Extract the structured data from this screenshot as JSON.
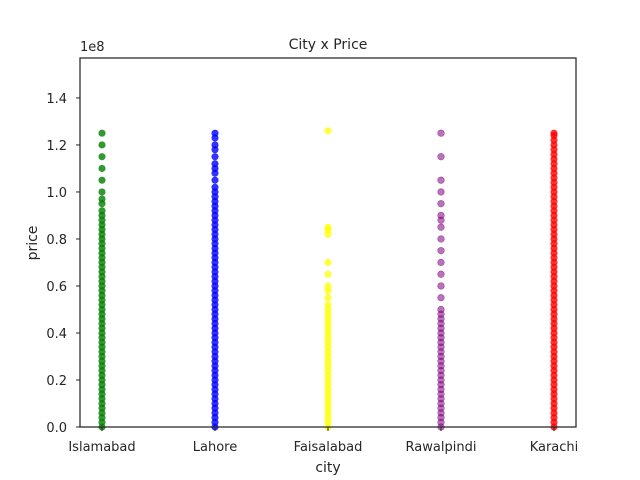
{
  "chart_data": {
    "type": "scatter",
    "title": "City x Price",
    "xlabel": "city",
    "ylabel": "price",
    "y_offset_label": "1e8",
    "ylim": [
      0,
      1.57
    ],
    "y_ticks": [
      0.0,
      0.2,
      0.4,
      0.6,
      0.8,
      1.0,
      1.2,
      1.4
    ],
    "y_tick_labels": [
      "0.0",
      "0.2",
      "0.4",
      "0.6",
      "0.8",
      "1.0",
      "1.2",
      "1.4"
    ],
    "categories": [
      "Islamabad",
      "Lahore",
      "Faisalabad",
      "Rawalpindi",
      "Karachi"
    ],
    "grid": false,
    "legend": "none",
    "series": [
      {
        "category": "Islamabad",
        "color": "#008000",
        "values": [
          0.0,
          0.02,
          0.04,
          0.06,
          0.08,
          0.1,
          0.12,
          0.14,
          0.16,
          0.18,
          0.2,
          0.22,
          0.24,
          0.26,
          0.28,
          0.3,
          0.32,
          0.34,
          0.36,
          0.38,
          0.4,
          0.42,
          0.44,
          0.46,
          0.48,
          0.5,
          0.52,
          0.54,
          0.56,
          0.58,
          0.6,
          0.62,
          0.64,
          0.66,
          0.68,
          0.7,
          0.72,
          0.74,
          0.76,
          0.78,
          0.8,
          0.82,
          0.84,
          0.86,
          0.88,
          0.9,
          0.92,
          0.95,
          0.97,
          1.0,
          1.05,
          1.1,
          1.15,
          1.2,
          1.25
        ]
      },
      {
        "category": "Lahore",
        "color": "#0000ff",
        "values": [
          0.0,
          0.02,
          0.04,
          0.06,
          0.08,
          0.1,
          0.12,
          0.14,
          0.16,
          0.18,
          0.2,
          0.22,
          0.24,
          0.26,
          0.28,
          0.3,
          0.32,
          0.34,
          0.36,
          0.38,
          0.4,
          0.42,
          0.44,
          0.46,
          0.48,
          0.5,
          0.52,
          0.54,
          0.56,
          0.58,
          0.6,
          0.62,
          0.64,
          0.66,
          0.68,
          0.7,
          0.72,
          0.74,
          0.76,
          0.78,
          0.8,
          0.82,
          0.84,
          0.86,
          0.88,
          0.9,
          0.92,
          0.94,
          0.96,
          0.98,
          1.0,
          1.02,
          1.05,
          1.08,
          1.1,
          1.12,
          1.15,
          1.18,
          1.2,
          1.23,
          1.25
        ]
      },
      {
        "category": "Faisalabad",
        "color": "#ffff00",
        "values": [
          0.0,
          0.02,
          0.04,
          0.06,
          0.08,
          0.1,
          0.12,
          0.14,
          0.16,
          0.18,
          0.2,
          0.22,
          0.24,
          0.26,
          0.28,
          0.3,
          0.32,
          0.34,
          0.36,
          0.38,
          0.4,
          0.42,
          0.44,
          0.46,
          0.48,
          0.5,
          0.52,
          0.55,
          0.58,
          0.6,
          0.65,
          0.7,
          0.82,
          0.84,
          0.85,
          1.26
        ]
      },
      {
        "category": "Rawalpindi",
        "color": "#800080",
        "values": [
          0.0,
          0.02,
          0.04,
          0.06,
          0.08,
          0.1,
          0.12,
          0.14,
          0.16,
          0.18,
          0.2,
          0.22,
          0.24,
          0.26,
          0.28,
          0.3,
          0.32,
          0.34,
          0.36,
          0.38,
          0.4,
          0.42,
          0.44,
          0.46,
          0.48,
          0.5,
          0.55,
          0.6,
          0.65,
          0.7,
          0.75,
          0.8,
          0.85,
          0.88,
          0.9,
          0.95,
          1.0,
          1.05,
          1.15,
          1.25
        ]
      },
      {
        "category": "Karachi",
        "color": "#ff0000",
        "values": [
          0.0,
          0.02,
          0.04,
          0.06,
          0.08,
          0.1,
          0.12,
          0.14,
          0.16,
          0.18,
          0.2,
          0.22,
          0.24,
          0.26,
          0.28,
          0.3,
          0.32,
          0.34,
          0.36,
          0.38,
          0.4,
          0.42,
          0.44,
          0.46,
          0.48,
          0.5,
          0.52,
          0.54,
          0.56,
          0.58,
          0.6,
          0.62,
          0.64,
          0.66,
          0.68,
          0.7,
          0.72,
          0.74,
          0.76,
          0.78,
          0.8,
          0.82,
          0.84,
          0.86,
          0.88,
          0.9,
          0.92,
          0.94,
          0.96,
          0.98,
          1.0,
          1.02,
          1.04,
          1.06,
          1.08,
          1.1,
          1.12,
          1.14,
          1.16,
          1.18,
          1.2,
          1.22,
          1.24,
          1.25
        ]
      }
    ]
  }
}
